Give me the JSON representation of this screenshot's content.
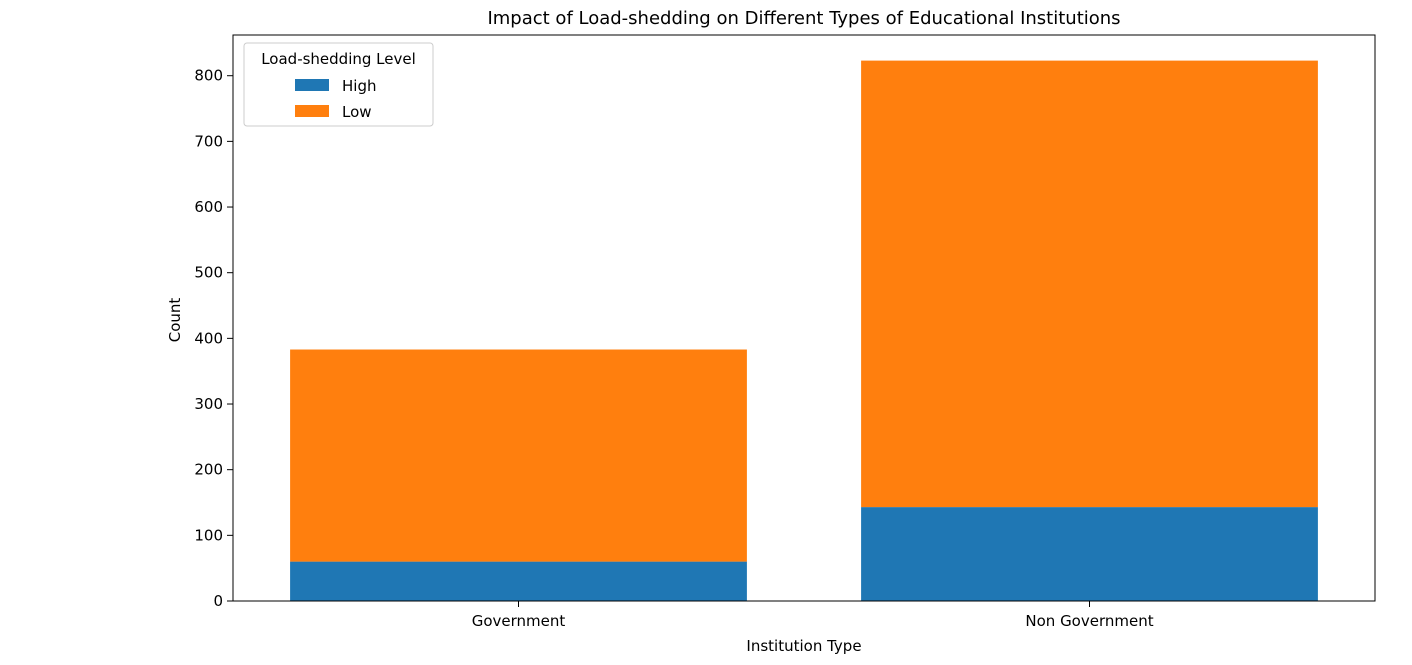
{
  "chart_data": {
    "type": "bar",
    "stacked": true,
    "title": "Impact of Load-shedding on Different Types of Educational Institutions",
    "xlabel": "Institution Type",
    "ylabel": "Count",
    "categories": [
      "Government",
      "Non Government"
    ],
    "series": [
      {
        "name": "High",
        "values": [
          60,
          143
        ],
        "color": "#1f77b4"
      },
      {
        "name": "Low",
        "values": [
          323,
          680
        ],
        "color": "#ff7f0e"
      }
    ],
    "ylim": [
      0,
      862
    ],
    "yticks": [
      0,
      100,
      200,
      300,
      400,
      500,
      600,
      700,
      800
    ],
    "grid": false,
    "legend": {
      "title": "Load-shedding Level",
      "placement": "top-left"
    }
  }
}
